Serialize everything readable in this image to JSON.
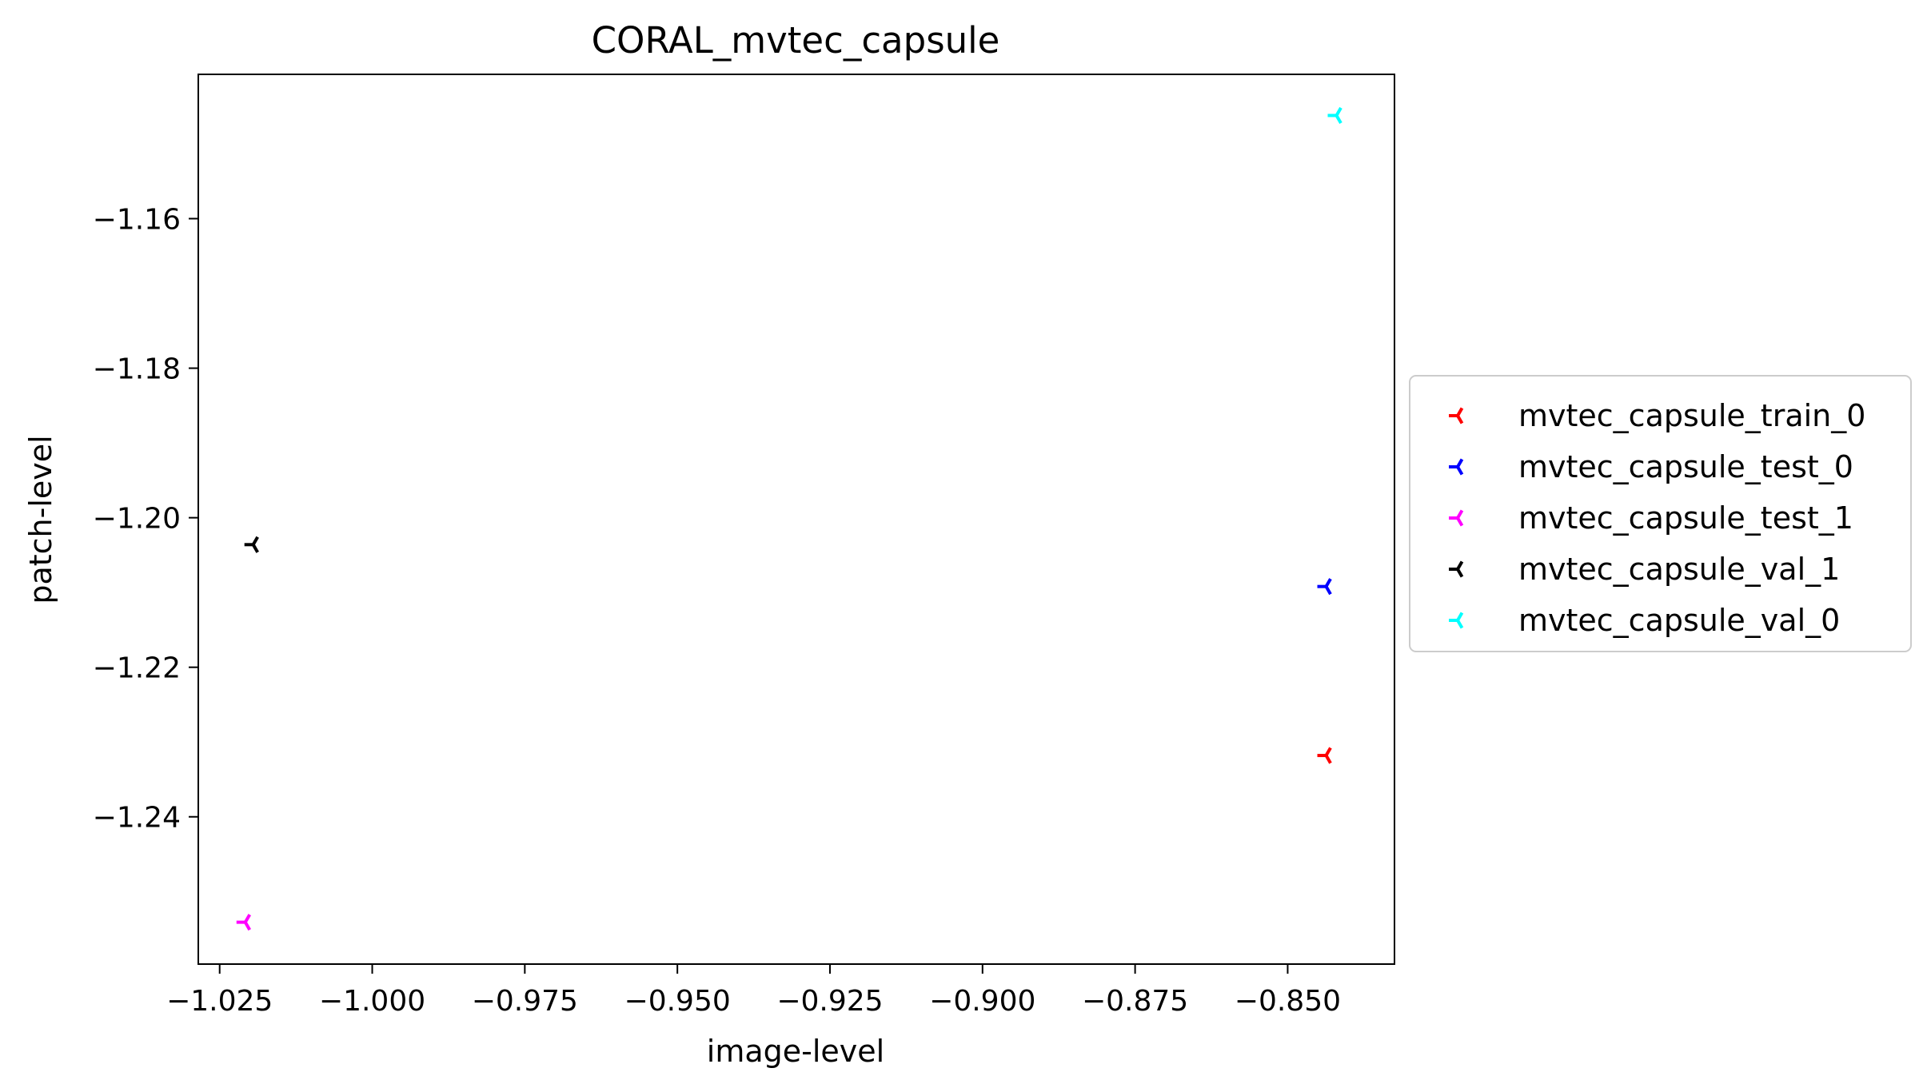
{
  "chart_data": {
    "type": "scatter",
    "title": "CORAL_mvtec_capsule",
    "xlabel": "image-level",
    "ylabel": "patch-level",
    "xlim": [
      -1.0285,
      -0.8325
    ],
    "ylim": [
      -1.2597,
      -1.1407
    ],
    "xticks": [
      -1.025,
      -1.0,
      -0.975,
      -0.95,
      -0.925,
      -0.9,
      -0.875,
      -0.85
    ],
    "xtick_labels": [
      "−1.025",
      "−1.000",
      "−0.975",
      "−0.950",
      "−0.925",
      "−0.900",
      "−0.875",
      "−0.850"
    ],
    "yticks": [
      -1.16,
      -1.18,
      -1.2,
      -1.22,
      -1.24
    ],
    "ytick_labels": [
      "−1.16",
      "−1.18",
      "−1.20",
      "−1.22",
      "−1.24"
    ],
    "grid": false,
    "legend_position": "center-right-outside",
    "marker": "tri",
    "series": [
      {
        "name": "mvtec_capsule_train_0",
        "color": "#ff0000",
        "x": [
          -0.8437
        ],
        "y": [
          -1.2318
        ]
      },
      {
        "name": "mvtec_capsule_test_0",
        "color": "#0000ff",
        "x": [
          -0.8437
        ],
        "y": [
          -1.2092
        ]
      },
      {
        "name": "mvtec_capsule_test_1",
        "color": "#ff00ff",
        "x": [
          -1.0208
        ],
        "y": [
          -1.2541
        ]
      },
      {
        "name": "mvtec_capsule_val_1",
        "color": "#000000",
        "x": [
          -1.0195
        ],
        "y": [
          -1.2036
        ]
      },
      {
        "name": "mvtec_capsule_val_0",
        "color": "#00ffff",
        "x": [
          -0.842
        ],
        "y": [
          -1.1462
        ]
      }
    ]
  }
}
